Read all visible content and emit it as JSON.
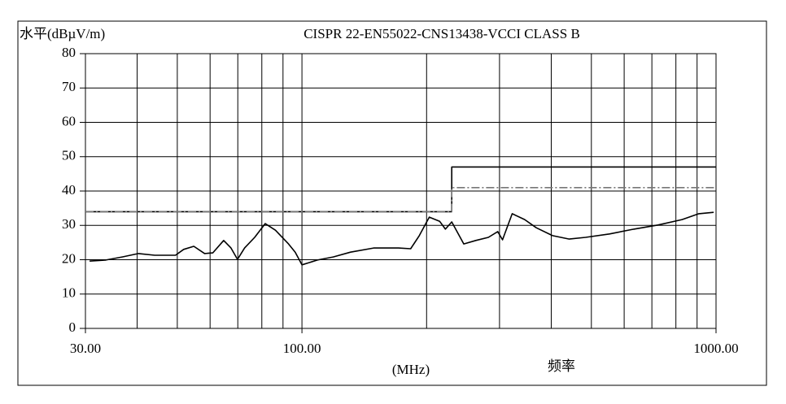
{
  "chart_data": {
    "type": "line",
    "title": "CISPR 22-EN55022-CNS13438-VCCI CLASS B",
    "y_label": "水平(dBµV/m)",
    "x_unit": "(MHz)",
    "x_label": "频率",
    "x_log": true,
    "xlim": [
      30,
      1000
    ],
    "xticks": [
      {
        "value": 30,
        "label": "30.00"
      },
      {
        "value": 100,
        "label": "100.00"
      },
      {
        "value": 1000,
        "label": "1000.00"
      }
    ],
    "xgrid": [
      40,
      50,
      60,
      70,
      80,
      90,
      100,
      200,
      300,
      400,
      500,
      600,
      700,
      800,
      900
    ],
    "ylim": [
      0,
      80
    ],
    "yticks": [
      0,
      10,
      20,
      30,
      40,
      50,
      60,
      70,
      80
    ],
    "grid": true,
    "series": [
      {
        "name": "limit",
        "color": "#000000",
        "dash": "none",
        "x": [
          30,
          230,
          230,
          1000
        ],
        "values": [
          34,
          34,
          47,
          47
        ]
      },
      {
        "name": "limit-margin",
        "color": "#777777",
        "dash": "10 3 2 3",
        "x": [
          30,
          230,
          230,
          1000
        ],
        "values": [
          34,
          34,
          41,
          41
        ]
      },
      {
        "name": "level",
        "color": "#000000",
        "dash": "none",
        "x": [
          30.7,
          33.6,
          36.8,
          40.3,
          44.1,
          49.5,
          51.8,
          54.8,
          58.2,
          60.9,
          64.7,
          67.4,
          69.9,
          72.7,
          76.9,
          81.5,
          86.3,
          92.8,
          96.3,
          100,
          109,
          119,
          131,
          149,
          171,
          183,
          192,
          203,
          215,
          222,
          230,
          246,
          263,
          282,
          297,
          305,
          322,
          345,
          368,
          403,
          442,
          484,
          553,
          633,
          724,
          828,
          909,
          987
        ],
        "values": [
          19.6,
          19.9,
          20.8,
          21.8,
          21.3,
          21.3,
          23.0,
          23.9,
          21.8,
          22.0,
          25.6,
          23.4,
          20.1,
          23.4,
          26.5,
          30.5,
          28.6,
          24.6,
          22.2,
          18.5,
          19.9,
          20.8,
          22.2,
          23.4,
          23.4,
          23.2,
          27.0,
          32.4,
          31.2,
          28.9,
          31.0,
          24.6,
          25.6,
          26.5,
          28.2,
          25.8,
          33.4,
          31.7,
          29.3,
          27.0,
          26.0,
          26.5,
          27.5,
          28.9,
          30.1,
          31.7,
          33.4,
          33.8
        ]
      }
    ]
  }
}
